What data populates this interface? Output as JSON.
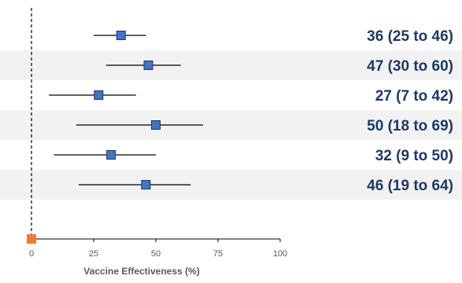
{
  "chart_data": {
    "type": "forest",
    "xlabel": "Vaccine Effectiveness (%)",
    "xlim": [
      0,
      100
    ],
    "x_ticks": [
      0,
      25,
      50,
      75,
      100
    ],
    "x_tick_labels": [
      "0",
      "25",
      "50",
      "75",
      "100"
    ],
    "reference_line": 0,
    "rows": [
      {
        "estimate": 36,
        "lower": 25,
        "upper": 46,
        "label": "36 (25 to 46)"
      },
      {
        "estimate": 47,
        "lower": 30,
        "upper": 60,
        "label": "47 (30 to 60)"
      },
      {
        "estimate": 27,
        "lower": 7,
        "upper": 42,
        "label": "27 (7 to 42)"
      },
      {
        "estimate": 50,
        "lower": 18,
        "upper": 69,
        "label": "50 (18 to 69)"
      },
      {
        "estimate": 32,
        "lower": 9,
        "upper": 50,
        "label": "32 (9 to 50)"
      },
      {
        "estimate": 46,
        "lower": 19,
        "upper": 64,
        "label": "46 (19 to 64)"
      }
    ],
    "origin_marker": 0,
    "colors": {
      "marker": "#4472c4",
      "marker_stroke": "#1f3864",
      "origin_marker": "#ed7d31",
      "band": "#f2f2f2",
      "label": "#1f3864"
    }
  }
}
